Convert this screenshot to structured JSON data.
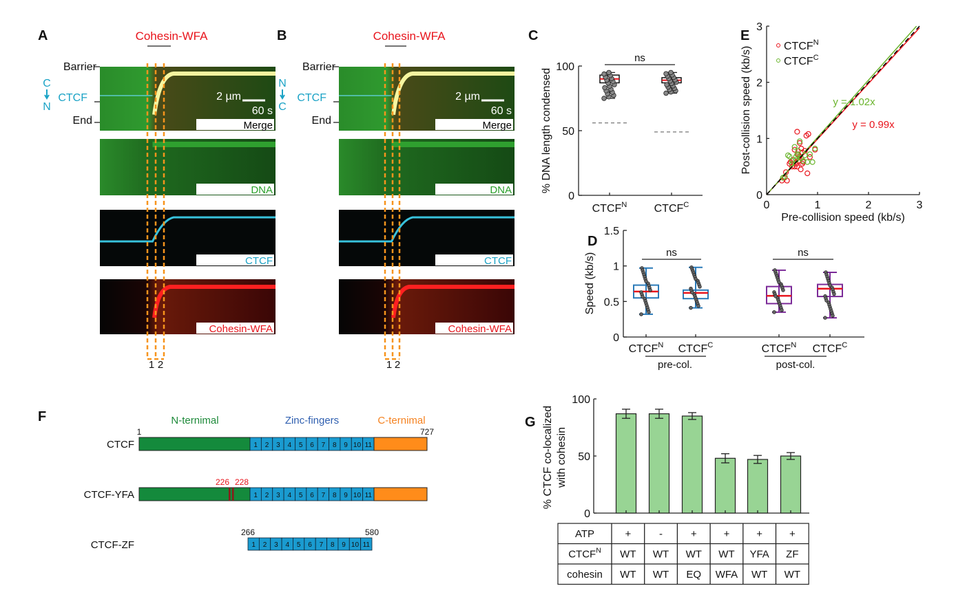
{
  "panels": {
    "A": "A",
    "B": "B",
    "C": "C",
    "D": "D",
    "E": "E",
    "F": "F",
    "G": "G"
  },
  "kymo": {
    "title": "Cohesin-WFA",
    "barrier": "Barrier",
    "end": "End",
    "ctcf": "CTCF",
    "orientA": [
      "C",
      "N"
    ],
    "orientB": [
      "N",
      "C"
    ],
    "scale_um": "2 µm",
    "scale_s": "60 s",
    "channels": [
      "Merge",
      "DNA",
      "CTCF",
      "Cohesin-WFA"
    ],
    "channel_colors": [
      "#000000",
      "#2aa02a",
      "#1ba3c6",
      "#e8141c"
    ],
    "collision_labels": [
      "1",
      "2"
    ]
  },
  "chart_data": [
    {
      "id": "C",
      "type": "box",
      "ylabel": "% DNA length condensed",
      "ylim": [
        0,
        100
      ],
      "yticks": [
        0,
        50,
        100
      ],
      "categories": [
        [
          "CTCF",
          "N"
        ],
        [
          "CTCF",
          "C"
        ]
      ],
      "boxes": [
        {
          "whisker_low": 75,
          "q1": 87,
          "median": 90,
          "q3": 93,
          "whisker_high": 95,
          "reference_dashed": 56
        },
        {
          "whisker_low": 79,
          "q1": 87,
          "median": 89,
          "q3": 91,
          "whisker_high": 95,
          "reference_dashed": 49
        }
      ],
      "significance": "ns",
      "box_color": "#000000",
      "median_color": "#e8141c"
    },
    {
      "id": "D",
      "type": "box",
      "ylabel": "Speed (kb/s)",
      "ylim": [
        0,
        1.5
      ],
      "yticks": [
        0,
        0.5,
        1,
        1.5
      ],
      "categories": [
        [
          "CTCF",
          "N"
        ],
        [
          "CTCF",
          "C"
        ],
        [
          "CTCF",
          "N"
        ],
        [
          "CTCF",
          "C"
        ]
      ],
      "groups": [
        "pre-col.",
        "post-col."
      ],
      "boxes": [
        {
          "whisker_low": 0.32,
          "q1": 0.55,
          "median": 0.64,
          "q3": 0.73,
          "whisker_high": 0.97,
          "color": "#2a7ab8"
        },
        {
          "whisker_low": 0.41,
          "q1": 0.54,
          "median": 0.62,
          "q3": 0.66,
          "whisker_high": 0.98,
          "color": "#2a7ab8"
        },
        {
          "whisker_low": 0.35,
          "q1": 0.47,
          "median": 0.58,
          "q3": 0.71,
          "whisker_high": 0.94,
          "color": "#7b2a98"
        },
        {
          "whisker_low": 0.27,
          "q1": 0.57,
          "median": 0.68,
          "q3": 0.74,
          "whisker_high": 0.91,
          "color": "#7b2a98"
        }
      ],
      "significance": [
        "ns",
        "ns"
      ],
      "median_color": "#e8141c"
    },
    {
      "id": "E",
      "type": "scatter",
      "xlabel": "Pre-collision speed (kb/s)",
      "ylabel": "Post-collision speed (kb/s)",
      "xlim": [
        0,
        3
      ],
      "ylim": [
        0,
        3
      ],
      "xticks": [
        0,
        1,
        2,
        3
      ],
      "yticks": [
        0,
        1,
        2,
        3
      ],
      "legend_position": "top-left",
      "series": [
        {
          "name": [
            "CTCF",
            "N"
          ],
          "color": "#e8141c",
          "fit": "y = 0.99x",
          "slope": 0.99,
          "points": [
            [
              0.3,
              0.25
            ],
            [
              0.35,
              0.3
            ],
            [
              0.38,
              0.4
            ],
            [
              0.4,
              0.25
            ],
            [
              0.45,
              0.55
            ],
            [
              0.47,
              0.58
            ],
            [
              0.5,
              0.5
            ],
            [
              0.52,
              0.62
            ],
            [
              0.55,
              0.8
            ],
            [
              0.58,
              0.55
            ],
            [
              0.6,
              1.12
            ],
            [
              0.6,
              0.5
            ],
            [
              0.62,
              0.6
            ],
            [
              0.65,
              0.92
            ],
            [
              0.65,
              0.68
            ],
            [
              0.67,
              0.45
            ],
            [
              0.7,
              0.75
            ],
            [
              0.7,
              0.55
            ],
            [
              0.72,
              0.58
            ],
            [
              0.75,
              0.78
            ],
            [
              0.78,
              1.05
            ],
            [
              0.8,
              0.38
            ],
            [
              0.82,
              1.08
            ],
            [
              0.85,
              0.67
            ],
            [
              0.95,
              0.8
            ],
            [
              0.68,
              0.82
            ],
            [
              0.55,
              0.5
            ],
            [
              0.62,
              0.72
            ]
          ]
        },
        {
          "name": [
            "CTCF",
            "C"
          ],
          "color": "#6ab42d",
          "fit": "y = 1.02x",
          "slope": 1.02,
          "points": [
            [
              0.32,
              0.3
            ],
            [
              0.36,
              0.32
            ],
            [
              0.42,
              0.7
            ],
            [
              0.45,
              0.68
            ],
            [
              0.5,
              0.6
            ],
            [
              0.55,
              0.85
            ],
            [
              0.58,
              0.62
            ],
            [
              0.6,
              0.72
            ],
            [
              0.62,
              0.78
            ],
            [
              0.65,
              0.95
            ],
            [
              0.68,
              0.65
            ],
            [
              0.72,
              0.6
            ],
            [
              0.75,
              0.7
            ],
            [
              0.8,
              0.58
            ],
            [
              0.85,
              0.72
            ],
            [
              0.9,
              0.58
            ],
            [
              0.95,
              0.82
            ],
            [
              0.5,
              0.55
            ],
            [
              0.58,
              0.68
            ]
          ]
        }
      ],
      "identity_line_color": "#000000"
    },
    {
      "id": "G",
      "type": "bar",
      "ylabel": [
        "% CTCF co-localized",
        "with cohesin"
      ],
      "ylim": [
        0,
        100
      ],
      "yticks": [
        0,
        50,
        100
      ],
      "values": [
        87,
        87,
        85,
        48,
        47,
        50
      ],
      "errors": [
        4,
        4,
        3,
        4,
        3.5,
        3
      ],
      "bar_color": "#98d494",
      "table": {
        "rows": [
          {
            "label": [
              "ATP",
              ""
            ],
            "cells": [
              "+",
              "-",
              "+",
              "+",
              "+",
              "+"
            ]
          },
          {
            "label": [
              "CTCF",
              "N"
            ],
            "cells": [
              "WT",
              "WT",
              "WT",
              "WT",
              "YFA",
              "ZF"
            ]
          },
          {
            "label": [
              "cohesin",
              ""
            ],
            "cells": [
              "WT",
              "WT",
              "EQ",
              "WFA",
              "WT",
              "WT"
            ]
          }
        ]
      }
    }
  ],
  "domains": {
    "headers": [
      "N-ternimal",
      "Zinc-fingers",
      "C-ternimal"
    ],
    "header_colors": [
      "#1e8a3a",
      "#2f5fb0",
      "#f58220"
    ],
    "colors": {
      "n": "#148a3c",
      "zf": "#1a9bd0",
      "c": "#ff8c1a",
      "mut": "#8b1a1a"
    },
    "zf_numbers": [
      "1",
      "2",
      "3",
      "4",
      "5",
      "6",
      "7",
      "8",
      "9",
      "10",
      "11"
    ],
    "constructs": [
      {
        "name": "CTCF",
        "start": "1",
        "end": "727"
      },
      {
        "name": "CTCF-YFA",
        "mutations": [
          "226",
          "228"
        ]
      },
      {
        "name": "CTCF-ZF",
        "start": "266",
        "end": "580"
      }
    ]
  }
}
